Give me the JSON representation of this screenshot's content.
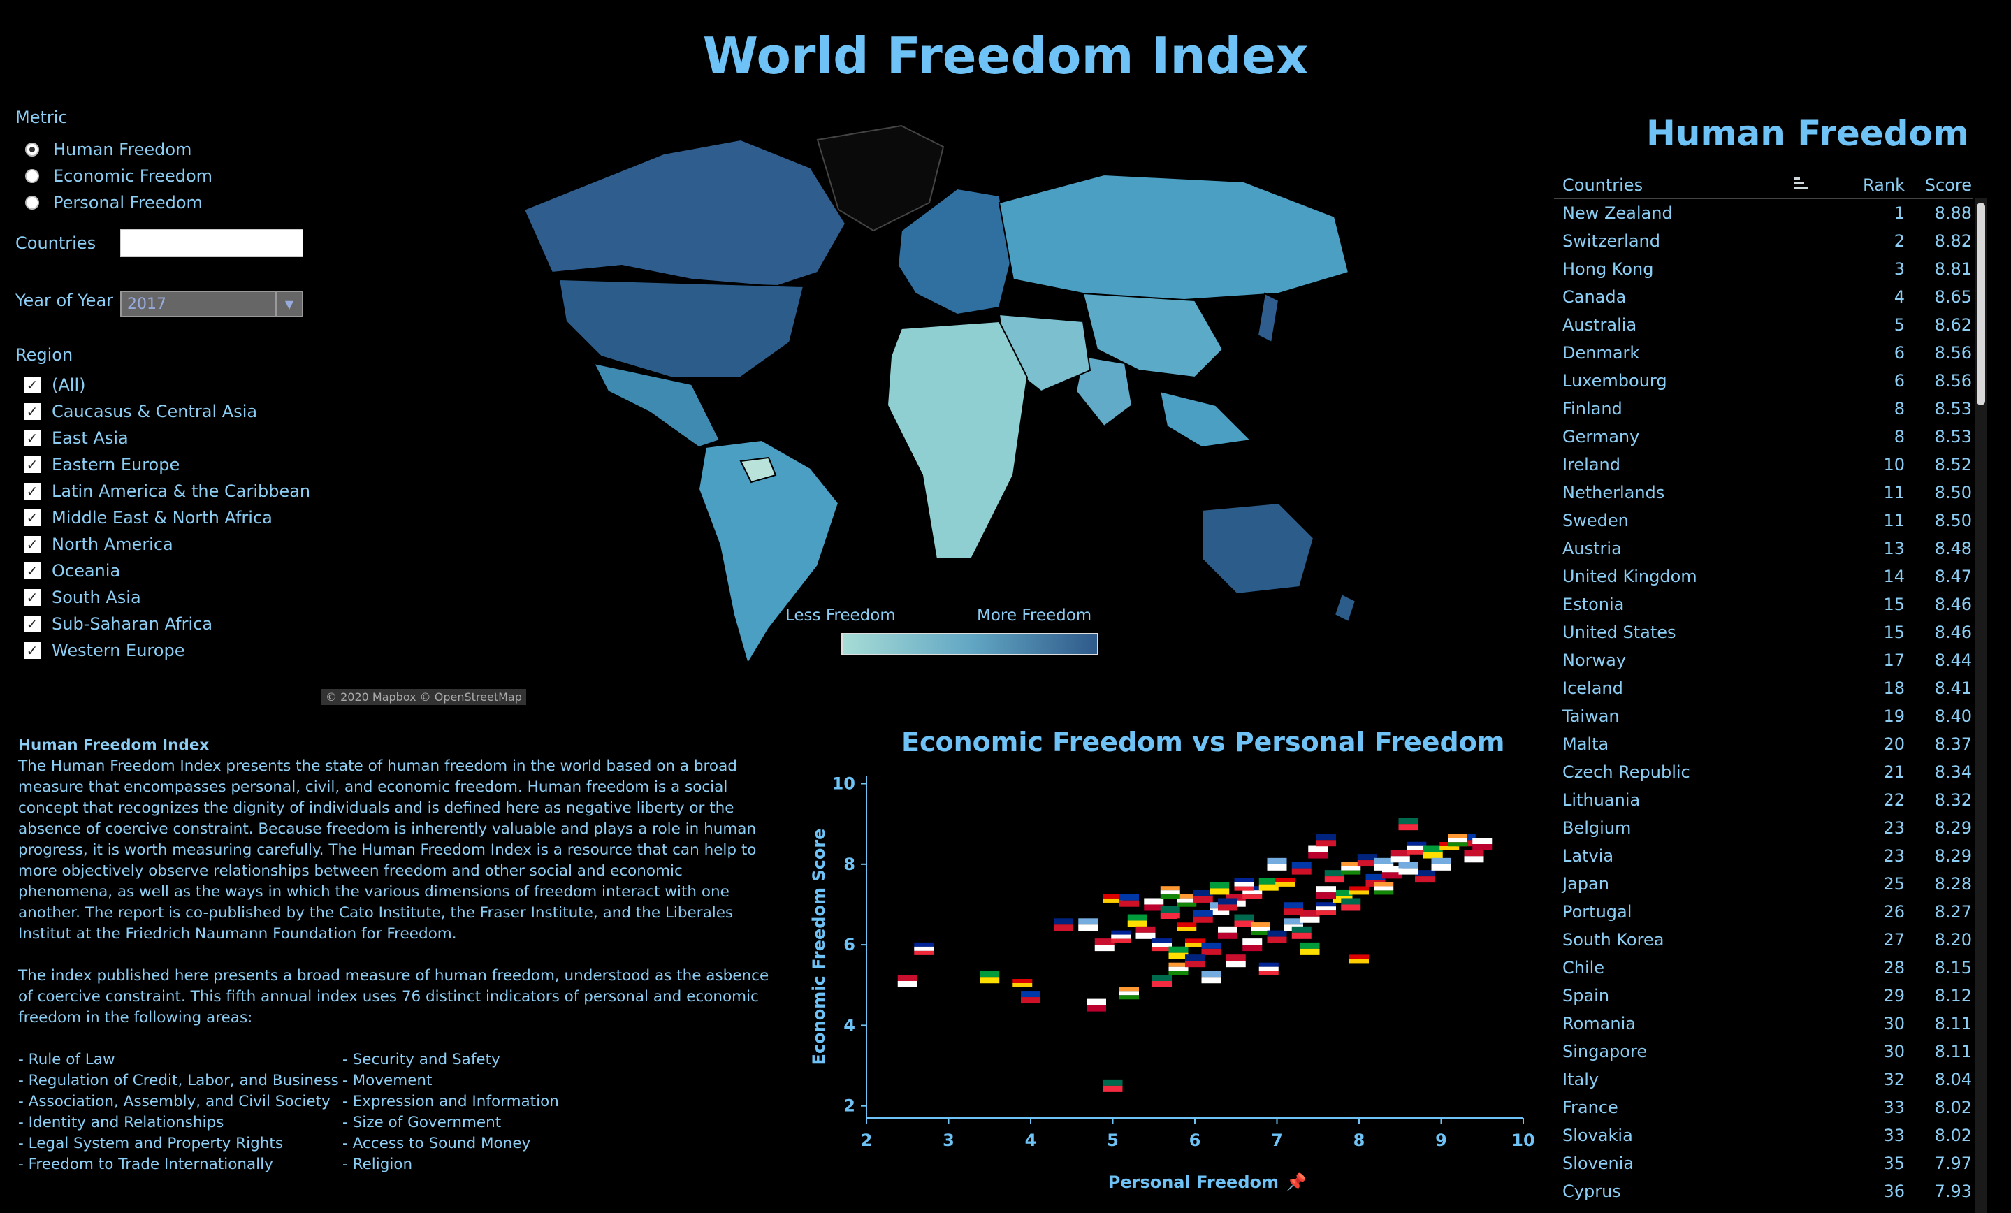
{
  "title": "World Freedom Index",
  "filters": {
    "metric_label": "Metric",
    "metrics": [
      {
        "label": "Human Freedom",
        "selected": true
      },
      {
        "label": "Economic Freedom",
        "selected": false
      },
      {
        "label": "Personal Freedom",
        "selected": false
      }
    ],
    "countries_label": "Countries",
    "countries_value": "",
    "year_label": "Year of Year",
    "year_value": "2017",
    "region_label": "Region",
    "regions": [
      {
        "label": "(All)",
        "checked": true
      },
      {
        "label": "Caucasus & Central Asia",
        "checked": true
      },
      {
        "label": "East Asia",
        "checked": true
      },
      {
        "label": "Eastern Europe",
        "checked": true
      },
      {
        "label": "Latin America & the Caribbean",
        "checked": true
      },
      {
        "label": "Middle East & North Africa",
        "checked": true
      },
      {
        "label": "North America",
        "checked": true
      },
      {
        "label": "Oceania",
        "checked": true
      },
      {
        "label": "South Asia",
        "checked": true
      },
      {
        "label": "Sub-Saharan Africa",
        "checked": true
      },
      {
        "label": "Western Europe",
        "checked": true
      }
    ]
  },
  "map": {
    "legend_less": "Less Freedom",
    "legend_more": "More Freedom",
    "credit": "© 2020 Mapbox © OpenStreetMap",
    "colors": {
      "low": "#a7dcd6",
      "mid": "#4a9ec0",
      "high": "#2f5a8a"
    }
  },
  "description": {
    "heading": "Human Freedom Index",
    "para1": "The Human Freedom Index presents the state of human freedom in the world based on a broad measure that encompasses personal, civil, and economic freedom. Human freedom is a social concept that recognizes the dignity of individuals and is defined here as negative liberty or the absence of coercive constraint. Because freedom is inherently valuable and plays a role in human progress, it is worth measuring carefully. The Human Freedom Index is a resource that can help to more objectively observe relationships between freedom and other social and economic phenomena, as well as the ways in which the various dimensions of freedom interact with one another. The report is co-published by the Cato Institute, the Fraser Institute, and the Liberales Institut at the Friedrich Naumann Foundation for Freedom.",
    "para2": "The index published here presents a broad measure of human freedom, understood as the asbence of coercive constraint. This fifth annual index uses 76 distinct indicators of personal and economic freedom in the following areas:",
    "areas_left": [
      "- Rule of Law",
      "- Regulation of Credit, Labor, and Business",
      "- Association, Assembly, and Civil Society",
      "- Identity and Relationships",
      "- Legal System and Property Rights",
      "- Freedom to Trade Internationally"
    ],
    "areas_right": [
      "- Security and Safety",
      "- Movement",
      "- Expression and Information",
      "- Size of Government",
      "- Access to Sound Money",
      "- Religion"
    ]
  },
  "table": {
    "title": "Human Freedom",
    "col_country": "Countries",
    "col_rank": "Rank",
    "col_score": "Score",
    "rows": [
      {
        "country": "New Zealand",
        "rank": "1",
        "score": "8.88"
      },
      {
        "country": "Switzerland",
        "rank": "2",
        "score": "8.82"
      },
      {
        "country": "Hong Kong",
        "rank": "3",
        "score": "8.81"
      },
      {
        "country": "Canada",
        "rank": "4",
        "score": "8.65"
      },
      {
        "country": "Australia",
        "rank": "5",
        "score": "8.62"
      },
      {
        "country": "Denmark",
        "rank": "6",
        "score": "8.56"
      },
      {
        "country": "Luxembourg",
        "rank": "6",
        "score": "8.56"
      },
      {
        "country": "Finland",
        "rank": "8",
        "score": "8.53"
      },
      {
        "country": "Germany",
        "rank": "8",
        "score": "8.53"
      },
      {
        "country": "Ireland",
        "rank": "10",
        "score": "8.52"
      },
      {
        "country": "Netherlands",
        "rank": "11",
        "score": "8.50"
      },
      {
        "country": "Sweden",
        "rank": "11",
        "score": "8.50"
      },
      {
        "country": "Austria",
        "rank": "13",
        "score": "8.48"
      },
      {
        "country": "United Kingdom",
        "rank": "14",
        "score": "8.47"
      },
      {
        "country": "Estonia",
        "rank": "15",
        "score": "8.46"
      },
      {
        "country": "United States",
        "rank": "15",
        "score": "8.46"
      },
      {
        "country": "Norway",
        "rank": "17",
        "score": "8.44"
      },
      {
        "country": "Iceland",
        "rank": "18",
        "score": "8.41"
      },
      {
        "country": "Taiwan",
        "rank": "19",
        "score": "8.40"
      },
      {
        "country": "Malta",
        "rank": "20",
        "score": "8.37"
      },
      {
        "country": "Czech Republic",
        "rank": "21",
        "score": "8.34"
      },
      {
        "country": "Lithuania",
        "rank": "22",
        "score": "8.32"
      },
      {
        "country": "Belgium",
        "rank": "23",
        "score": "8.29"
      },
      {
        "country": "Latvia",
        "rank": "23",
        "score": "8.29"
      },
      {
        "country": "Japan",
        "rank": "25",
        "score": "8.28"
      },
      {
        "country": "Portugal",
        "rank": "26",
        "score": "8.27"
      },
      {
        "country": "South Korea",
        "rank": "27",
        "score": "8.20"
      },
      {
        "country": "Chile",
        "rank": "28",
        "score": "8.15"
      },
      {
        "country": "Spain",
        "rank": "29",
        "score": "8.12"
      },
      {
        "country": "Romania",
        "rank": "30",
        "score": "8.11"
      },
      {
        "country": "Singapore",
        "rank": "30",
        "score": "8.11"
      },
      {
        "country": "Italy",
        "rank": "32",
        "score": "8.04"
      },
      {
        "country": "France",
        "rank": "33",
        "score": "8.02"
      },
      {
        "country": "Slovakia",
        "rank": "33",
        "score": "8.02"
      },
      {
        "country": "Slovenia",
        "rank": "35",
        "score": "7.97"
      },
      {
        "country": "Cyprus",
        "rank": "36",
        "score": "7.93"
      }
    ]
  },
  "chart_data": {
    "type": "scatter",
    "title": "Economic Freedom vs Personal Freedom",
    "xlabel": "Personal Freedom",
    "ylabel": "Economic Freedom Score",
    "xlim": [
      2,
      10
    ],
    "ylim": [
      1.7,
      10.2
    ],
    "xticks": [
      "2",
      "3",
      "4",
      "5",
      "6",
      "7",
      "8",
      "9",
      "10"
    ],
    "yticks": [
      "2",
      "4",
      "6",
      "8",
      "10"
    ],
    "grid": false,
    "points": [
      [
        2.5,
        5.1
      ],
      [
        2.7,
        5.9
      ],
      [
        3.5,
        5.2
      ],
      [
        3.9,
        5.1
      ],
      [
        4.0,
        4.7
      ],
      [
        4.8,
        4.5
      ],
      [
        5.0,
        2.5
      ],
      [
        5.2,
        4.8
      ],
      [
        4.4,
        6.5
      ],
      [
        4.7,
        6.5
      ],
      [
        4.9,
        6.0
      ],
      [
        5.1,
        6.2
      ],
      [
        5.3,
        6.6
      ],
      [
        5.0,
        7.2
      ],
      [
        5.2,
        7.1
      ],
      [
        5.5,
        7.0
      ],
      [
        5.7,
        6.8
      ],
      [
        5.9,
        7.1
      ],
      [
        6.1,
        7.2
      ],
      [
        6.3,
        6.9
      ],
      [
        6.5,
        7.1
      ],
      [
        6.7,
        7.3
      ],
      [
        6.9,
        7.5
      ],
      [
        7.1,
        7.6
      ],
      [
        7.3,
        7.9
      ],
      [
        7.5,
        8.3
      ],
      [
        7.7,
        7.7
      ],
      [
        7.9,
        7.9
      ],
      [
        8.1,
        8.1
      ],
      [
        8.3,
        8.0
      ],
      [
        8.5,
        8.2
      ],
      [
        8.7,
        8.4
      ],
      [
        8.9,
        8.3
      ],
      [
        9.1,
        8.5
      ],
      [
        9.3,
        8.6
      ],
      [
        9.5,
        8.5
      ],
      [
        8.6,
        9.0
      ],
      [
        9.2,
        8.6
      ],
      [
        7.6,
        8.6
      ],
      [
        7.0,
        8.0
      ],
      [
        5.4,
        6.3
      ],
      [
        5.6,
        6.0
      ],
      [
        5.8,
        5.8
      ],
      [
        6.0,
        6.1
      ],
      [
        6.2,
        5.9
      ],
      [
        6.4,
        6.3
      ],
      [
        6.6,
        6.6
      ],
      [
        6.8,
        6.4
      ],
      [
        7.0,
        6.2
      ],
      [
        7.2,
        6.5
      ],
      [
        7.4,
        6.7
      ],
      [
        7.6,
        6.9
      ],
      [
        7.8,
        7.2
      ],
      [
        8.0,
        7.4
      ],
      [
        8.2,
        7.6
      ],
      [
        8.4,
        7.8
      ],
      [
        5.6,
        5.1
      ],
      [
        5.8,
        5.4
      ],
      [
        6.0,
        5.6
      ],
      [
        6.2,
        5.2
      ],
      [
        6.5,
        5.6
      ],
      [
        6.9,
        5.4
      ],
      [
        7.4,
        5.9
      ],
      [
        8.0,
        5.7
      ],
      [
        7.2,
        6.9
      ],
      [
        7.6,
        7.3
      ],
      [
        7.9,
        7.0
      ],
      [
        8.3,
        7.4
      ],
      [
        8.8,
        7.7
      ],
      [
        9.0,
        8.0
      ],
      [
        9.4,
        8.2
      ],
      [
        6.6,
        7.5
      ],
      [
        6.3,
        7.4
      ],
      [
        5.9,
        6.5
      ],
      [
        6.1,
        6.7
      ],
      [
        6.7,
        6.0
      ],
      [
        7.3,
        6.3
      ],
      [
        5.7,
        7.3
      ],
      [
        6.4,
        7.0
      ],
      [
        8.6,
        7.9
      ]
    ]
  }
}
